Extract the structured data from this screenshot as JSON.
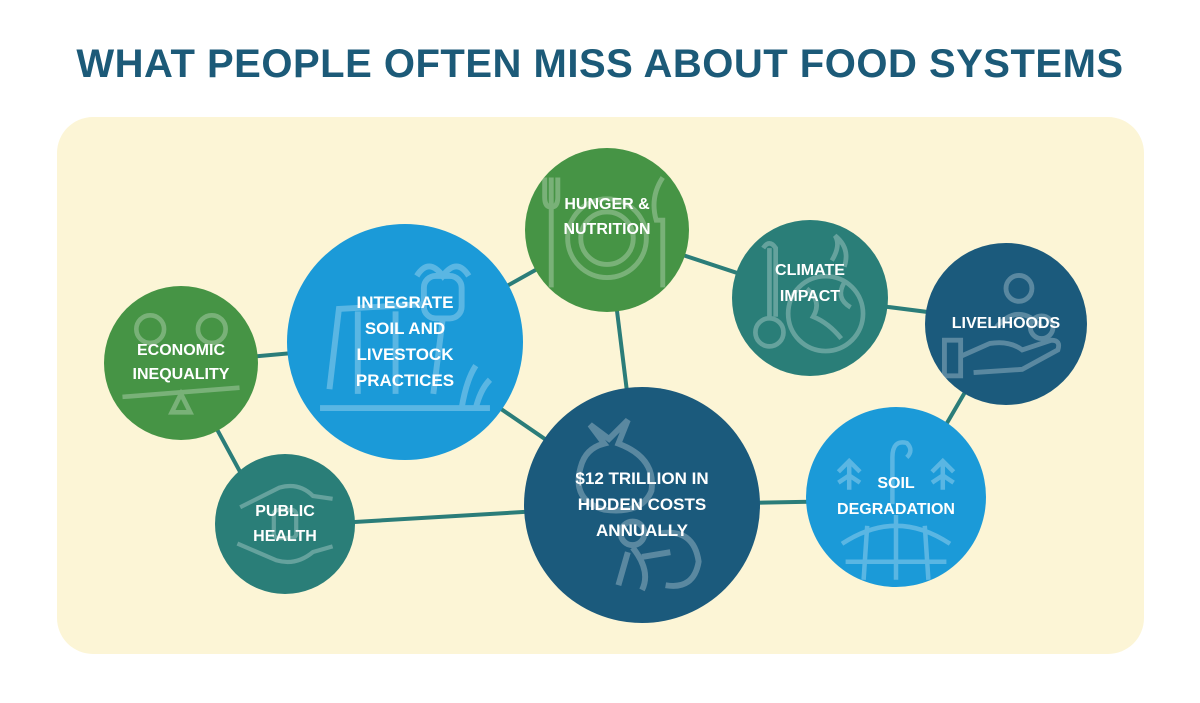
{
  "title": "WHAT PEOPLE OFTEN MISS ABOUT FOOD SYSTEMS",
  "colors": {
    "title": "#1c5a78",
    "panel": "#fcf5d6",
    "connector": "#2b7d79",
    "green": "#469445",
    "teal": "#2a7e78",
    "sky_blue": "#1b9ad8",
    "navy": "#1b5a7c"
  },
  "nodes": {
    "economic_inequality": {
      "label": "ECONOMIC INEQUALITY",
      "icon": "seesaw-people-icon"
    },
    "integrate_soil_livestock": {
      "label": "INTEGRATE SOIL AND LIVESTOCK PRACTICES",
      "icon": "cow-icon"
    },
    "hunger_nutrition": {
      "label": "HUNGER & NUTRITION",
      "icon": "plate-cutlery-icon"
    },
    "climate_impact": {
      "label": "CLIMATE IMPACT",
      "icon": "thermometer-globe-icon"
    },
    "livelihoods": {
      "label": "LIVELIHOODS",
      "icon": "hand-person-icon"
    },
    "public_health": {
      "label": "PUBLIC HEALTH",
      "icon": "hands-icon"
    },
    "hidden_costs": {
      "label": "$12 TRILLION IN HIDDEN COSTS ANNUALLY",
      "icon": "cost-bag-person-icon"
    },
    "soil_degradation": {
      "label": "SOIL DEGRADATION",
      "icon": "globe-plants-icon"
    }
  }
}
